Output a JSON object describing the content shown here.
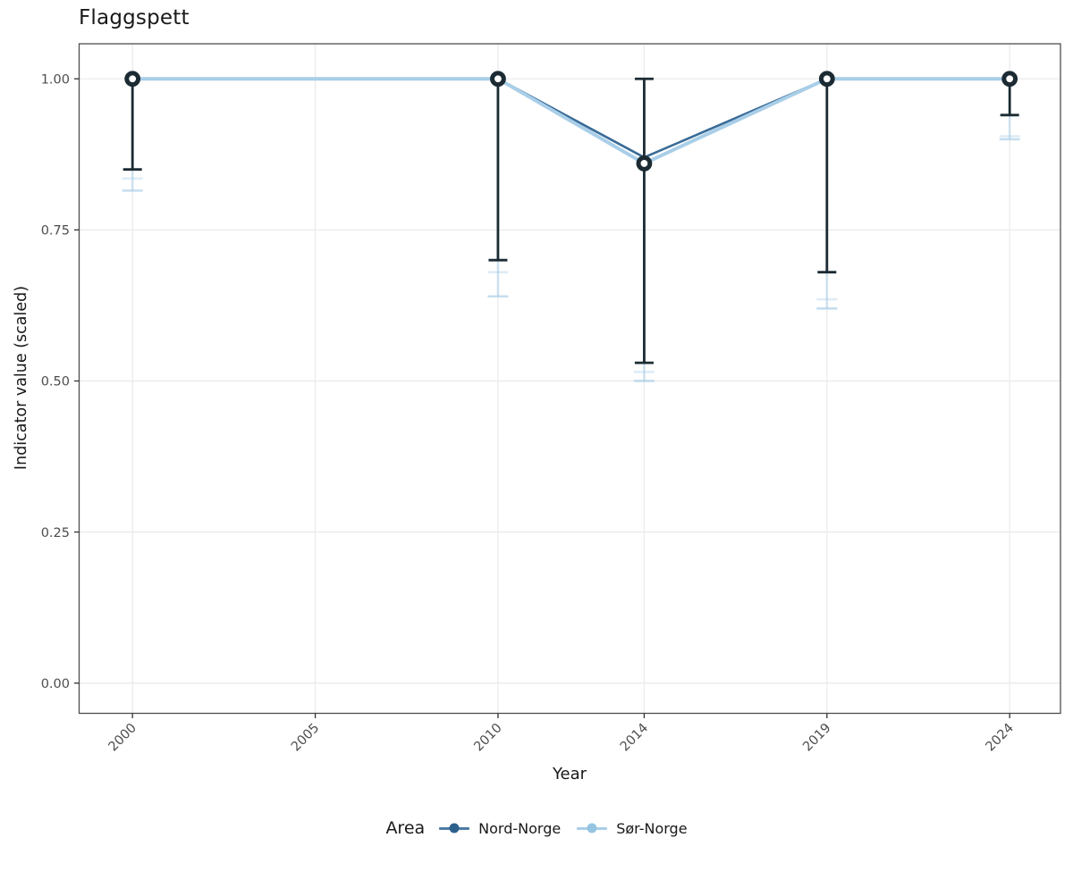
{
  "chart_data": {
    "type": "line",
    "title": "Flaggspett",
    "xlabel": "Year",
    "ylabel": "Indicator value (scaled)",
    "x_ticks": [
      {
        "value": 2000,
        "label": "2000"
      },
      {
        "value": 2005,
        "label": "2005"
      },
      {
        "value": 2010,
        "label": "2010"
      },
      {
        "value": 2014,
        "label": "2014"
      },
      {
        "value": 2019,
        "label": "2019"
      },
      {
        "value": 2024,
        "label": "2024"
      }
    ],
    "y_ticks": [
      {
        "value": 0.0,
        "label": "0.00"
      },
      {
        "value": 0.25,
        "label": "0.25"
      },
      {
        "value": 0.5,
        "label": "0.50"
      },
      {
        "value": 0.75,
        "label": "0.75"
      },
      {
        "value": 1.0,
        "label": "1.00"
      }
    ],
    "xlim": [
      1998.54,
      2025.39
    ],
    "ylim": [
      -0.05,
      1.058
    ],
    "grid": "major",
    "years": [
      2000,
      2010,
      2014,
      2019,
      2024
    ],
    "series": [
      {
        "name": "Nord-Norge",
        "color": "#3a6b97",
        "width": 2.6,
        "values": [
          1.0,
          1.0,
          0.87,
          1.0,
          1.0
        ]
      },
      {
        "name": "Sør-Norge",
        "color": "#a9cee8",
        "width": 4.0,
        "values": [
          1.0,
          1.0,
          0.86,
          1.0,
          1.0
        ]
      }
    ],
    "point_estimates": {
      "color": "#1c2b33",
      "values": [
        1.0,
        1.0,
        0.86,
        1.0,
        1.0
      ],
      "upper": [
        1.0,
        1.0,
        1.0,
        1.0,
        1.0
      ],
      "lower": [
        0.85,
        0.7,
        0.53,
        0.68,
        0.94
      ]
    },
    "light_whiskers": {
      "color": "#a9cee8",
      "caps": [
        [
          0.835,
          0.815
        ],
        [
          0.68,
          0.64
        ],
        [
          0.515,
          0.5
        ],
        [
          0.635,
          0.62
        ],
        [
          0.905,
          0.9
        ]
      ]
    },
    "legend": {
      "title": "Area",
      "position": "bottom",
      "entries": [
        {
          "label": "Nord-Norge",
          "dot_color": "#2e608c",
          "line_color": "#4d7ba3"
        },
        {
          "label": "Sør-Norge",
          "dot_color": "#96c5e2",
          "line_color": "#a9cee8"
        }
      ]
    },
    "style": {
      "grid_color": "#ebebeb",
      "border_color": "#4f4f4f",
      "tick_color": "#333333",
      "tick_label_color": "#4d4d4d",
      "background": "#ffffff"
    }
  }
}
